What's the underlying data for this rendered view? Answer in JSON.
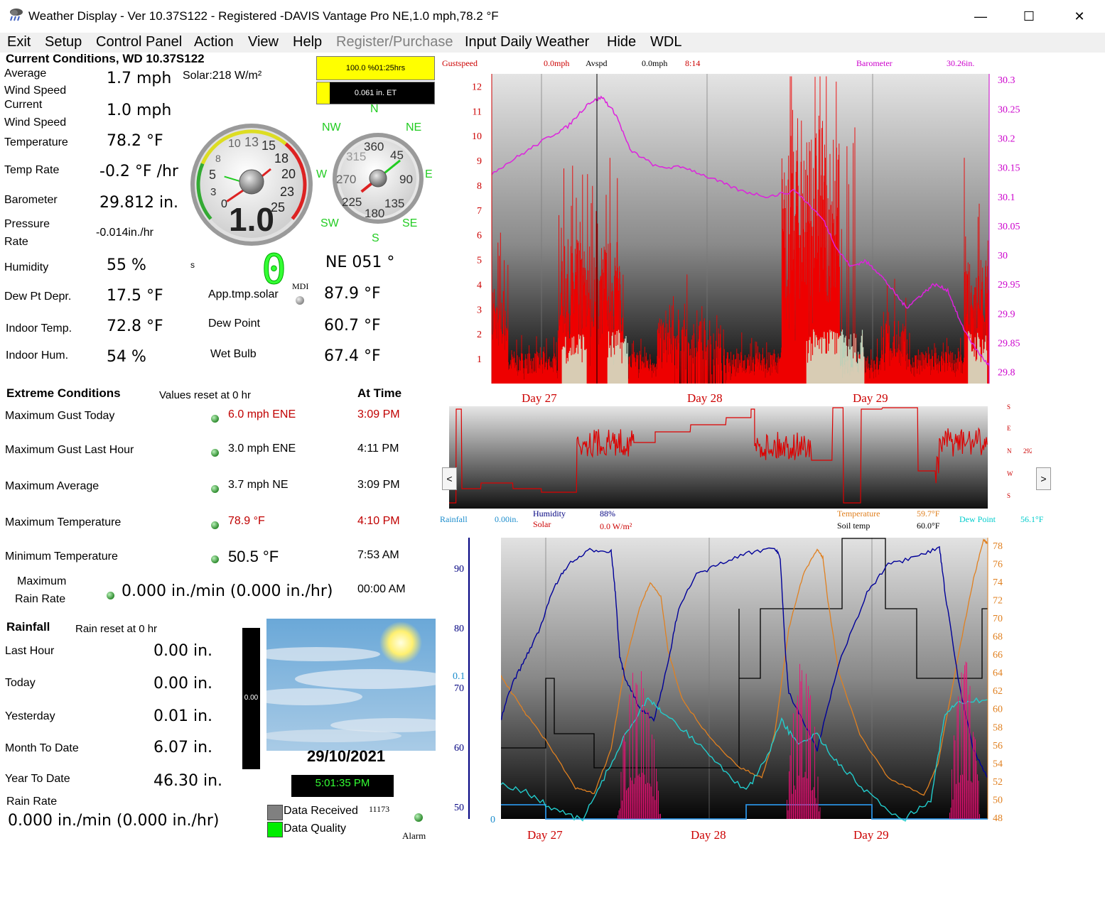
{
  "window": {
    "title": "Weather Display - Ver 10.37S122 - Registered  -DAVIS Vantage Pro  NE,1.0 mph,78.2 °F",
    "minimize": "—",
    "maximize": "☐",
    "close": "✕"
  },
  "menu": [
    "Exit",
    "Setup",
    "Control Panel",
    "Action",
    "View",
    "Help",
    "Register/Purchase",
    "Input Daily Weather",
    "Hide",
    "WDL"
  ],
  "current": {
    "header": "Current Conditions, WD 10.37S122",
    "avg_wind_label1": "Average",
    "avg_wind_label2": "Wind Speed",
    "avg_wind": "1.7 mph",
    "solar": "Solar:218 W/m²",
    "cur_wind_label1": "Current",
    "cur_wind_label2": "Wind Speed",
    "cur_wind": "1.0 mph",
    "temp_label": "Temperature",
    "temp": "78.2 °F",
    "temp_rate_label": "Temp Rate",
    "temp_rate": "-0.2 °F /hr",
    "baro_label": "Barometer",
    "baro": "29.812 in.",
    "press_rate_label1": "Pressure",
    "press_rate_label2": "Rate",
    "press_rate": "-0.014in./hr",
    "humidity_label": "Humidity",
    "humidity": "55 %",
    "dewdepr_label": "Dew Pt Depr.",
    "dewdepr": "17.5 °F",
    "indoor_temp_label": "Indoor Temp.",
    "indoor_temp": "72.8 °F",
    "indoor_hum_label": "Indoor Hum.",
    "indoor_hum": "54 %",
    "apptmp_label": "App.tmp.solar",
    "apptmp": "87.9 °F",
    "dewpoint_label": "Dew Point",
    "dewpoint": "60.7 °F",
    "wetbulb_label": "Wet Bulb",
    "wetbulb": "67.4 °F",
    "dir_text": "NE  051 °",
    "uv_digit": "0",
    "mdi": "MDI",
    "small_s": "s"
  },
  "bars": {
    "yellow_text": "100.0 %01:25hrs",
    "et_text": "0.061 in. ET"
  },
  "speed_gauge": {
    "value_text": "1.0",
    "ticks": [
      "0",
      "3",
      "5",
      "8",
      "10",
      "13",
      "15",
      "18",
      "20",
      "23",
      "25"
    ],
    "value": 1.0,
    "avg": 1.7
  },
  "compass": {
    "N": "N",
    "NE": "NE",
    "E": "E",
    "SE": "SE",
    "S": "S",
    "SW": "SW",
    "W": "W",
    "NW": "NW",
    "ticks": [
      "360",
      "45",
      "90",
      "135",
      "180",
      "225",
      "270",
      "315"
    ],
    "direction_deg": 51
  },
  "extreme": {
    "header": "Extreme Conditions",
    "reset_note": "Values reset at 0 hr",
    "at_time": "At Time",
    "rows": [
      {
        "label": "Maximum Gust Today",
        "value": "6.0 mph ENE",
        "time": "3:09 PM",
        "red": true
      },
      {
        "label": "Maximum Gust Last Hour",
        "value": "3.0 mph ENE",
        "time": "4:11 PM",
        "red": false
      },
      {
        "label": "Maximum Average",
        "value": "3.7 mph  NE",
        "time": "3:09 PM",
        "red": false
      },
      {
        "label": "Maximum Temperature",
        "value": "78.9 °F",
        "time": "4:10 PM",
        "red": true
      },
      {
        "label": "Minimum Temperature",
        "value": "50.5 °F",
        "time": "7:53 AM",
        "red": false
      }
    ],
    "max_rain_label1": "Maximum",
    "max_rain_label2": "Rain Rate",
    "max_rain_value": "0.000 in./min (0.000 in./hr)",
    "max_rain_time": "00:00 AM"
  },
  "rainfall": {
    "header": "Rainfall",
    "reset_note": "Rain reset at 0 hr",
    "last_hour_label": "Last Hour",
    "last_hour": "0.00 in.",
    "today_label": "Today",
    "today": "0.00 in.",
    "yesterday_label": "Yesterday",
    "yesterday": "0.01 in.",
    "mtd_label": "Month To Date",
    "mtd": "6.07 in.",
    "ytd_label": "Year To Date",
    "ytd": "46.30 in.",
    "rate_label": "Rain Rate",
    "rate": "0.000 in./min (0.000 in./hr)",
    "gauge_value": "0.00"
  },
  "status": {
    "date": "29/10/2021",
    "time": "5:01:35 PM",
    "data_received": "Data Received",
    "data_received_count": "11173",
    "data_quality": "Data Quality",
    "alarm": "Alarm"
  },
  "chart_data": [
    {
      "type": "line",
      "legend": [
        {
          "label": "Gustspeed",
          "value": "0.0mph",
          "color": "#cc0000"
        },
        {
          "label": "Avspd",
          "value": "0.0mph",
          "color": "#000000"
        },
        {
          "label": "8:14",
          "color": "#cc0000"
        },
        {
          "label": "Barometer",
          "value": "30.26in.",
          "color": "#cc00cc"
        }
      ],
      "y_left_ticks": [
        "1",
        "2",
        "3",
        "4",
        "5",
        "6",
        "7",
        "8",
        "9",
        "10",
        "11",
        "12"
      ],
      "y_right_ticks": [
        "29.8",
        "29.85",
        "29.9",
        "29.95",
        "30",
        "30.05",
        "30.1",
        "30.15",
        "30.2",
        "30.25",
        "30.3"
      ],
      "x_labels": [
        "Day 27",
        "Day 28",
        "Day 29"
      ],
      "ylim_left": [
        0,
        12.5
      ],
      "ylim_right": [
        29.78,
        30.31
      ],
      "series": [
        {
          "name": "Barometer",
          "color": "#dd22dd",
          "x": [
            0,
            4,
            8,
            11,
            14,
            16,
            18,
            20,
            24,
            28,
            32,
            36,
            40,
            44,
            48,
            50,
            52,
            54,
            56,
            58,
            60,
            62,
            64,
            66,
            68,
            70,
            72
          ],
          "y": [
            30.14,
            30.17,
            30.2,
            30.22,
            30.26,
            30.27,
            30.24,
            30.18,
            30.15,
            30.15,
            30.13,
            30.11,
            30.1,
            30.11,
            30.06,
            30.01,
            29.98,
            29.99,
            29.97,
            29.94,
            29.91,
            29.93,
            29.95,
            29.94,
            29.88,
            29.84,
            29.81
          ]
        }
      ]
    },
    {
      "type": "line",
      "labels_right": [
        "S",
        "E",
        "N",
        "W",
        "S"
      ],
      "current_dir": "292°",
      "series": [
        {
          "name": "Wind direction",
          "color": "#cc0000"
        }
      ]
    },
    {
      "type": "line",
      "legend": [
        {
          "label": "Rainfall",
          "value": "0.00in.",
          "color": "#1a8ccc"
        },
        {
          "label": "Humidity",
          "value": "88%",
          "color": "#000080"
        },
        {
          "label": "Solar",
          "value": "0.0 W/m²",
          "color": "#cc0000"
        },
        {
          "label": "Temperature",
          "value": "59.7°F",
          "color": "#e08020"
        },
        {
          "label": "Soil temp",
          "value": "60.0°F",
          "color": "#000000"
        },
        {
          "label": "Dew Point",
          "value": "56.1°F",
          "color": "#00cccc"
        }
      ],
      "y_left_ticks": [
        "50",
        "60",
        "70",
        "80",
        "90"
      ],
      "y_rain_ticks": [
        "0",
        "0.1"
      ],
      "y_right_ticks": [
        "48",
        "50",
        "52",
        "54",
        "56",
        "58",
        "60",
        "62",
        "64",
        "66",
        "68",
        "70",
        "72",
        "74",
        "76",
        "78"
      ],
      "x_labels": [
        "Day 27",
        "Day 28",
        "Day 29"
      ],
      "ylim_right": [
        48,
        79
      ]
    }
  ]
}
